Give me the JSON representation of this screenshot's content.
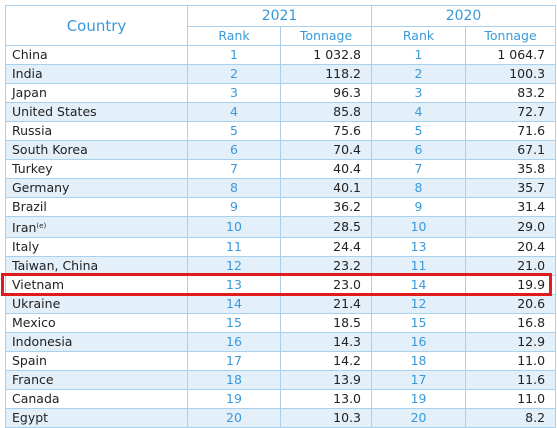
{
  "table": {
    "header": {
      "country": "Country",
      "year_1": "2021",
      "year_2": "2020",
      "rank_1": "Rank",
      "tonnage_1": "Tonnage",
      "rank_2": "Rank",
      "tonnage_2": "Tonnage"
    },
    "highlight": 12,
    "rows": [
      {
        "country": "China",
        "rank_2021": 1,
        "tonnage_2021": "1 032.8",
        "rank_2020": 1,
        "tonnage_2020": "1 064.7"
      },
      {
        "country": "India",
        "rank_2021": 2,
        "tonnage_2021": "118.2",
        "rank_2020": 2,
        "tonnage_2020": "100.3"
      },
      {
        "country": "Japan",
        "rank_2021": 3,
        "tonnage_2021": "96.3",
        "rank_2020": 3,
        "tonnage_2020": "83.2"
      },
      {
        "country": "United States",
        "rank_2021": 4,
        "tonnage_2021": "85.8",
        "rank_2020": 4,
        "tonnage_2020": "72.7"
      },
      {
        "country": "Russia",
        "rank_2021": 5,
        "tonnage_2021": "75.6",
        "rank_2020": 5,
        "tonnage_2020": "71.6"
      },
      {
        "country": "South Korea",
        "rank_2021": 6,
        "tonnage_2021": "70.4",
        "rank_2020": 6,
        "tonnage_2020": "67.1"
      },
      {
        "country": "Turkey",
        "rank_2021": 7,
        "tonnage_2021": "40.4",
        "rank_2020": 7,
        "tonnage_2020": "35.8"
      },
      {
        "country": "Germany",
        "rank_2021": 8,
        "tonnage_2021": "40.1",
        "rank_2020": 8,
        "tonnage_2020": "35.7"
      },
      {
        "country": "Brazil",
        "rank_2021": 9,
        "tonnage_2021": "36.2",
        "rank_2020": 9,
        "tonnage_2020": "31.4"
      },
      {
        "country": "Iran",
        "note": "(e)",
        "rank_2021": 10,
        "tonnage_2021": "28.5",
        "rank_2020": 10,
        "tonnage_2020": "29.0"
      },
      {
        "country": "Italy",
        "rank_2021": 11,
        "tonnage_2021": "24.4",
        "rank_2020": 13,
        "tonnage_2020": "20.4"
      },
      {
        "country": "Taiwan, China",
        "rank_2021": 12,
        "tonnage_2021": "23.2",
        "rank_2020": 11,
        "tonnage_2020": "21.0"
      },
      {
        "country": "Vietnam",
        "rank_2021": 13,
        "tonnage_2021": "23.0",
        "rank_2020": 14,
        "tonnage_2020": "19.9"
      },
      {
        "country": "Ukraine",
        "rank_2021": 14,
        "tonnage_2021": "21.4",
        "rank_2020": 12,
        "tonnage_2020": "20.6"
      },
      {
        "country": "Mexico",
        "rank_2021": 15,
        "tonnage_2021": "18.5",
        "rank_2020": 15,
        "tonnage_2020": "16.8"
      },
      {
        "country": "Indonesia",
        "rank_2021": 16,
        "tonnage_2021": "14.3",
        "rank_2020": 16,
        "tonnage_2020": "12.9"
      },
      {
        "country": "Spain",
        "rank_2021": 17,
        "tonnage_2021": "14.2",
        "rank_2020": 18,
        "tonnage_2020": "11.0"
      },
      {
        "country": "France",
        "rank_2021": 18,
        "tonnage_2021": "13.9",
        "rank_2020": 17,
        "tonnage_2020": "11.6"
      },
      {
        "country": "Canada",
        "rank_2021": 19,
        "tonnage_2021": "13.0",
        "rank_2020": 19,
        "tonnage_2020": "11.0"
      },
      {
        "country": "Egypt",
        "rank_2021": 20,
        "tonnage_2021": "10.3",
        "rank_2020": 20,
        "tonnage_2020": "8.2"
      }
    ]
  }
}
